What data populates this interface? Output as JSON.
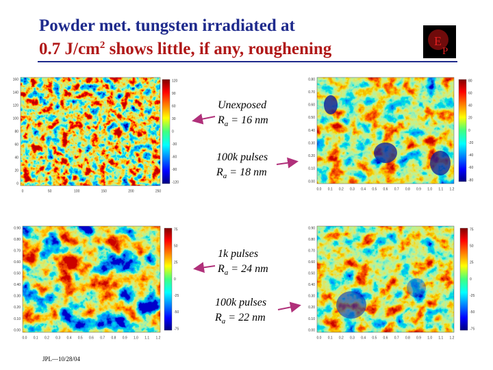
{
  "header": {
    "title_line1": "Powder met. tungsten irradiated at",
    "title_line2_a": "0.7 J/cm",
    "title_line2_sup": "2",
    "title_line2_b": " shows little, if any, roughening",
    "logo": [
      "E",
      "P"
    ]
  },
  "panels": [
    {
      "yticks": [
        "160",
        "140",
        "120",
        "100",
        "80",
        "60",
        "40",
        "20",
        "0"
      ],
      "xticks": [
        "0",
        "50",
        "100",
        "150",
        "200",
        "250"
      ],
      "cbticks": [
        "120",
        "90",
        "60",
        "30",
        "0",
        "-30",
        "-60",
        "-90",
        "-120"
      ]
    },
    {
      "yticks": [
        "0.80",
        "0.70",
        "0.60",
        "0.50",
        "0.40",
        "0.30",
        "0.20",
        "0.10",
        "0.00"
      ],
      "xticks": [
        "0.0",
        "0.1",
        "0.2",
        "0.3",
        "0.4",
        "0.5",
        "0.6",
        "0.7",
        "0.8",
        "0.9",
        "1.0",
        "1.1",
        "1.2"
      ],
      "cbticks": [
        "80",
        "60",
        "40",
        "20",
        "0",
        "-20",
        "-40",
        "-60",
        "-80"
      ]
    },
    {
      "yticks": [
        "0.90",
        "0.80",
        "0.70",
        "0.60",
        "0.50",
        "0.40",
        "0.30",
        "0.20",
        "0.10",
        "0.00"
      ],
      "xticks": [
        "0.0",
        "0.1",
        "0.2",
        "0.3",
        "0.4",
        "0.5",
        "0.6",
        "0.7",
        "0.8",
        "0.9",
        "1.0",
        "1.1",
        "1.2"
      ],
      "cbticks": [
        "75",
        "50",
        "25",
        "0",
        "-25",
        "-50",
        "-75"
      ]
    },
    {
      "yticks": [
        "0.90",
        "0.80",
        "0.70",
        "0.60",
        "0.50",
        "0.40",
        "0.30",
        "0.20",
        "0.10",
        "0.00"
      ],
      "xticks": [
        "0.0",
        "0.1",
        "0.2",
        "0.3",
        "0.4",
        "0.5",
        "0.6",
        "0.7",
        "0.8",
        "0.9",
        "1.0",
        "1.1",
        "1.2"
      ],
      "cbticks": [
        "75",
        "50",
        "25",
        "0",
        "-25",
        "-50",
        "-75"
      ]
    }
  ],
  "labels": [
    {
      "line1": "Unexposed",
      "r": "R",
      "sub": "a",
      "rest": " = 16 nm"
    },
    {
      "line1": "100k pulses",
      "r": "R",
      "sub": "a",
      "rest": " = 18 nm"
    },
    {
      "line1": "1k pulses",
      "r": "R",
      "sub": "a",
      "rest": " = 24 nm"
    },
    {
      "line1": "100k pulses",
      "r": "R",
      "sub": "a",
      "rest": " = 22 nm"
    }
  ],
  "footer": "JPL—10/28/04"
}
